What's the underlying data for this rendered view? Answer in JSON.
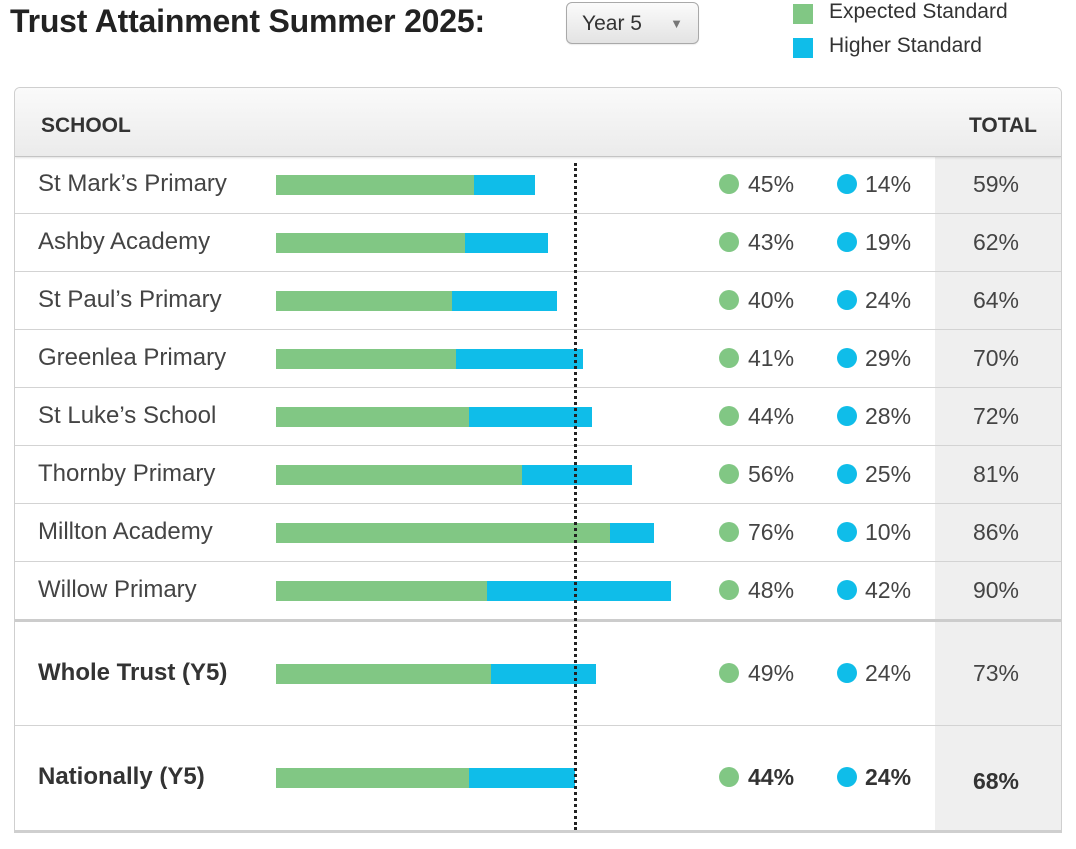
{
  "header": {
    "title": "Trust Attainment Summer 2025:",
    "year_select": "Year 5",
    "arrow_glyph": "▼"
  },
  "legend": [
    {
      "label": "Expected Standard",
      "color": "#81c784"
    },
    {
      "label": "Higher Standard",
      "color": "#0fbde9"
    }
  ],
  "table": {
    "school_header": "SCHOOL",
    "total_header": "TOTAL"
  },
  "colors": {
    "expected": "#81c784",
    "higher": "#0fbde9"
  },
  "chart_data": {
    "type": "bar",
    "stacked": true,
    "orientation": "horizontal",
    "reference_line": 68,
    "categories": [
      "St Mark’s Primary",
      "Ashby Academy",
      "St Paul’s Primary",
      "Greenlea Primary",
      "St Luke’s School",
      "Thornby Primary",
      "Millton Academy",
      "Willow Primary"
    ],
    "series": [
      {
        "name": "Expected Standard",
        "values": [
          45,
          43,
          40,
          41,
          44,
          56,
          76,
          48
        ]
      },
      {
        "name": "Higher Standard",
        "values": [
          14,
          19,
          24,
          29,
          28,
          25,
          10,
          42
        ]
      }
    ],
    "rows": [
      {
        "name": "St Mark’s Primary",
        "expected": 45,
        "higher": 14,
        "expected_label": "45%",
        "higher_label": "14%",
        "total_label": "59%"
      },
      {
        "name": "Ashby Academy",
        "expected": 43,
        "higher": 19,
        "expected_label": "43%",
        "higher_label": "19%",
        "total_label": "62%"
      },
      {
        "name": "St Paul’s Primary",
        "expected": 40,
        "higher": 24,
        "expected_label": "40%",
        "higher_label": "24%",
        "total_label": "64%"
      },
      {
        "name": "Greenlea Primary",
        "expected": 41,
        "higher": 29,
        "expected_label": "41%",
        "higher_label": "29%",
        "total_label": "70%"
      },
      {
        "name": "St Luke’s School",
        "expected": 44,
        "higher": 28,
        "expected_label": "44%",
        "higher_label": "28%",
        "total_label": "72%"
      },
      {
        "name": "Thornby Primary",
        "expected": 56,
        "higher": 25,
        "expected_label": "56%",
        "higher_label": "25%",
        "total_label": "81%"
      },
      {
        "name": "Millton Academy",
        "expected": 76,
        "higher": 10,
        "expected_label": "76%",
        "higher_label": "10%",
        "total_label": "86%"
      },
      {
        "name": "Willow Primary",
        "expected": 48,
        "higher": 42,
        "expected_label": "48%",
        "higher_label": "42%",
        "total_label": "90%"
      }
    ],
    "summary_rows": [
      {
        "name": "Whole Trust (Y5)",
        "expected": 49,
        "higher": 24,
        "expected_label": "49%",
        "higher_label": "24%",
        "total_label": "73%"
      },
      {
        "name": "Nationally (Y5)",
        "expected": 44,
        "higher": 24,
        "expected_label": "44%",
        "higher_label": "24%",
        "total_label": "68%"
      }
    ]
  }
}
